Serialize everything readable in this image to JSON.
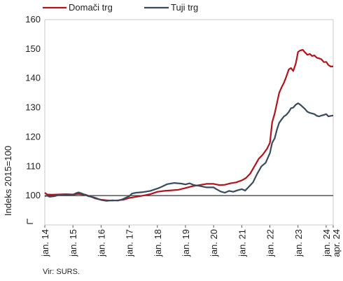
{
  "chart_data": {
    "type": "line",
    "title": "",
    "xlabel": "",
    "ylabel": "Indeks 2015=100",
    "ylim": [
      90,
      160
    ],
    "yticks": [
      100,
      110,
      120,
      130,
      140,
      150,
      160
    ],
    "grid": false,
    "legend_position": "top-left",
    "x_range": [
      2014.0,
      2024.25
    ],
    "x_ticks": [
      {
        "x": 2014,
        "label": "jan. 14"
      },
      {
        "x": 2015,
        "label": "jan. 15"
      },
      {
        "x": 2016,
        "label": "jan. 16"
      },
      {
        "x": 2017,
        "label": "jan. 17"
      },
      {
        "x": 2018,
        "label": "jan. 18"
      },
      {
        "x": 2019,
        "label": "jan. 19"
      },
      {
        "x": 2020,
        "label": "jan. 20"
      },
      {
        "x": 2021,
        "label": "jan. 21"
      },
      {
        "x": 2022,
        "label": "jan. 22"
      },
      {
        "x": 2023,
        "label": "jan. 23"
      },
      {
        "x": 2024,
        "label": "jan. 24"
      },
      {
        "x": 2024.25,
        "label": "apr. 24"
      }
    ],
    "reference_line": 100,
    "series": [
      {
        "name": "Domači trg",
        "color": "#b5121b",
        "points": [
          [
            2014.0,
            101.0
          ],
          [
            2014.08,
            100.4
          ],
          [
            2014.25,
            100.3
          ],
          [
            2014.5,
            100.4
          ],
          [
            2014.75,
            100.5
          ],
          [
            2015.0,
            100.4
          ],
          [
            2015.2,
            100.6
          ],
          [
            2015.45,
            100.3
          ],
          [
            2015.65,
            99.6
          ],
          [
            2015.8,
            99.0
          ],
          [
            2016.0,
            98.6
          ],
          [
            2016.2,
            98.4
          ],
          [
            2016.4,
            98.3
          ],
          [
            2016.6,
            98.4
          ],
          [
            2016.8,
            98.6
          ],
          [
            2017.0,
            99.2
          ],
          [
            2017.25,
            99.6
          ],
          [
            2017.5,
            100.0
          ],
          [
            2017.75,
            100.5
          ],
          [
            2018.0,
            101.3
          ],
          [
            2018.25,
            101.6
          ],
          [
            2018.5,
            101.8
          ],
          [
            2018.75,
            102.0
          ],
          [
            2019.0,
            102.6
          ],
          [
            2019.25,
            103.2
          ],
          [
            2019.5,
            103.6
          ],
          [
            2019.75,
            104.0
          ],
          [
            2020.0,
            104.0
          ],
          [
            2020.2,
            103.6
          ],
          [
            2020.4,
            103.7
          ],
          [
            2020.6,
            104.2
          ],
          [
            2020.8,
            104.5
          ],
          [
            2021.0,
            105.2
          ],
          [
            2021.15,
            106.0
          ],
          [
            2021.3,
            107.5
          ],
          [
            2021.45,
            110.0
          ],
          [
            2021.6,
            112.5
          ],
          [
            2021.75,
            114.0
          ],
          [
            2021.9,
            116.0
          ],
          [
            2022.0,
            118.0
          ],
          [
            2022.08,
            125.0
          ],
          [
            2022.17,
            128.0
          ],
          [
            2022.25,
            131.5
          ],
          [
            2022.33,
            135.0
          ],
          [
            2022.42,
            137.0
          ],
          [
            2022.5,
            138.5
          ],
          [
            2022.58,
            140.5
          ],
          [
            2022.67,
            143.0
          ],
          [
            2022.75,
            143.5
          ],
          [
            2022.83,
            142.5
          ],
          [
            2022.92,
            145.0
          ],
          [
            2023.0,
            149.0
          ],
          [
            2023.08,
            149.5
          ],
          [
            2023.17,
            149.7
          ],
          [
            2023.25,
            148.8
          ],
          [
            2023.33,
            148.0
          ],
          [
            2023.42,
            148.3
          ],
          [
            2023.5,
            147.6
          ],
          [
            2023.58,
            147.8
          ],
          [
            2023.67,
            147.0
          ],
          [
            2023.75,
            146.8
          ],
          [
            2023.83,
            146.5
          ],
          [
            2023.92,
            145.5
          ],
          [
            2024.0,
            145.6
          ],
          [
            2024.08,
            144.5
          ],
          [
            2024.17,
            144.0
          ],
          [
            2024.25,
            144.1
          ]
        ]
      },
      {
        "name": "Tuji trg",
        "color": "#3a4a5c",
        "points": [
          [
            2014.0,
            99.8
          ],
          [
            2014.08,
            100.0
          ],
          [
            2014.17,
            99.6
          ],
          [
            2014.33,
            99.8
          ],
          [
            2014.5,
            100.2
          ],
          [
            2014.75,
            100.4
          ],
          [
            2015.0,
            100.3
          ],
          [
            2015.1,
            100.8
          ],
          [
            2015.2,
            101.1
          ],
          [
            2015.35,
            100.6
          ],
          [
            2015.55,
            99.8
          ],
          [
            2015.75,
            99.4
          ],
          [
            2016.0,
            98.5
          ],
          [
            2016.2,
            98.2
          ],
          [
            2016.4,
            98.4
          ],
          [
            2016.6,
            98.3
          ],
          [
            2016.75,
            98.7
          ],
          [
            2016.9,
            99.4
          ],
          [
            2017.0,
            99.8
          ],
          [
            2017.1,
            100.7
          ],
          [
            2017.25,
            101.0
          ],
          [
            2017.5,
            101.2
          ],
          [
            2017.75,
            101.6
          ],
          [
            2018.0,
            102.4
          ],
          [
            2018.15,
            103.0
          ],
          [
            2018.35,
            103.9
          ],
          [
            2018.6,
            104.3
          ],
          [
            2018.85,
            104.1
          ],
          [
            2019.0,
            103.8
          ],
          [
            2019.15,
            104.2
          ],
          [
            2019.3,
            103.6
          ],
          [
            2019.5,
            103.3
          ],
          [
            2019.75,
            102.8
          ],
          [
            2020.0,
            102.8
          ],
          [
            2020.1,
            102.2
          ],
          [
            2020.25,
            101.4
          ],
          [
            2020.4,
            101.0
          ],
          [
            2020.55,
            101.6
          ],
          [
            2020.7,
            101.3
          ],
          [
            2020.85,
            101.8
          ],
          [
            2021.0,
            102.2
          ],
          [
            2021.12,
            101.7
          ],
          [
            2021.25,
            103.0
          ],
          [
            2021.4,
            104.5
          ],
          [
            2021.55,
            107.5
          ],
          [
            2021.7,
            110.0
          ],
          [
            2021.85,
            111.2
          ],
          [
            2022.0,
            114.5
          ],
          [
            2022.08,
            118.0
          ],
          [
            2022.17,
            119.5
          ],
          [
            2022.25,
            122.5
          ],
          [
            2022.33,
            124.8
          ],
          [
            2022.42,
            126.0
          ],
          [
            2022.5,
            127.0
          ],
          [
            2022.58,
            127.5
          ],
          [
            2022.67,
            128.5
          ],
          [
            2022.75,
            129.8
          ],
          [
            2022.83,
            130.0
          ],
          [
            2022.92,
            131.0
          ],
          [
            2023.0,
            131.5
          ],
          [
            2023.08,
            131.0
          ],
          [
            2023.17,
            130.2
          ],
          [
            2023.25,
            129.5
          ],
          [
            2023.33,
            128.6
          ],
          [
            2023.42,
            128.2
          ],
          [
            2023.5,
            128.0
          ],
          [
            2023.58,
            127.8
          ],
          [
            2023.67,
            127.2
          ],
          [
            2023.75,
            127.0
          ],
          [
            2023.83,
            127.3
          ],
          [
            2023.92,
            127.5
          ],
          [
            2024.0,
            127.8
          ],
          [
            2024.08,
            127.0
          ],
          [
            2024.17,
            127.2
          ],
          [
            2024.25,
            127.3
          ]
        ]
      }
    ],
    "source": "Vir: SURS."
  }
}
